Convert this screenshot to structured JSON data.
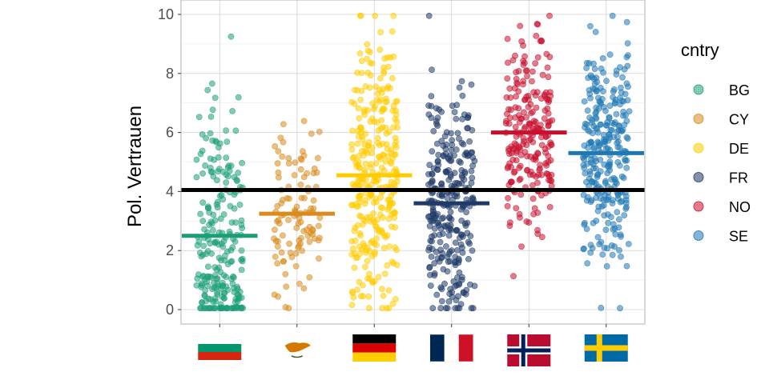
{
  "chart_data": {
    "type": "scatter",
    "subtype": "jittered-strip-with-group-means",
    "ylabel": "Pol. Vertrauen",
    "xlabel": "",
    "ylim": [
      0,
      10
    ],
    "yticks": [
      0,
      2,
      4,
      6,
      8,
      10
    ],
    "grid": true,
    "legend": {
      "title": "cntry",
      "placement": "right"
    },
    "x_tick_labels_are_flags": true,
    "overall_mean": 4.05,
    "overall_mean_color": "#000000",
    "series": [
      {
        "name": "BG",
        "color": "#1b9e77",
        "mean": 2.5,
        "sd": 2.4,
        "n": 240,
        "spike_at_zero": 0.22,
        "flag": "bulgaria-flag"
      },
      {
        "name": "CY",
        "color": "#d98b1e",
        "mean": 3.25,
        "sd": 1.6,
        "n": 110,
        "spike_at_zero": 0.0,
        "flag": "cyprus-flag"
      },
      {
        "name": "DE",
        "color": "#ffcc00",
        "mean": 4.55,
        "sd": 2.2,
        "n": 330,
        "spike_at_zero": 0.0,
        "flag": "germany-flag"
      },
      {
        "name": "FR",
        "color": "#1f3a68",
        "mean": 3.6,
        "sd": 1.9,
        "n": 300,
        "spike_at_zero": 0.03,
        "flag": "france-flag"
      },
      {
        "name": "NO",
        "color": "#c8102e",
        "mean": 6.0,
        "sd": 1.7,
        "n": 230,
        "spike_at_zero": 0.0,
        "flag": "norway-flag"
      },
      {
        "name": "SE",
        "color": "#1f78b4",
        "mean": 5.3,
        "sd": 1.9,
        "n": 290,
        "spike_at_zero": 0.0,
        "flag": "sweden-flag"
      }
    ]
  }
}
